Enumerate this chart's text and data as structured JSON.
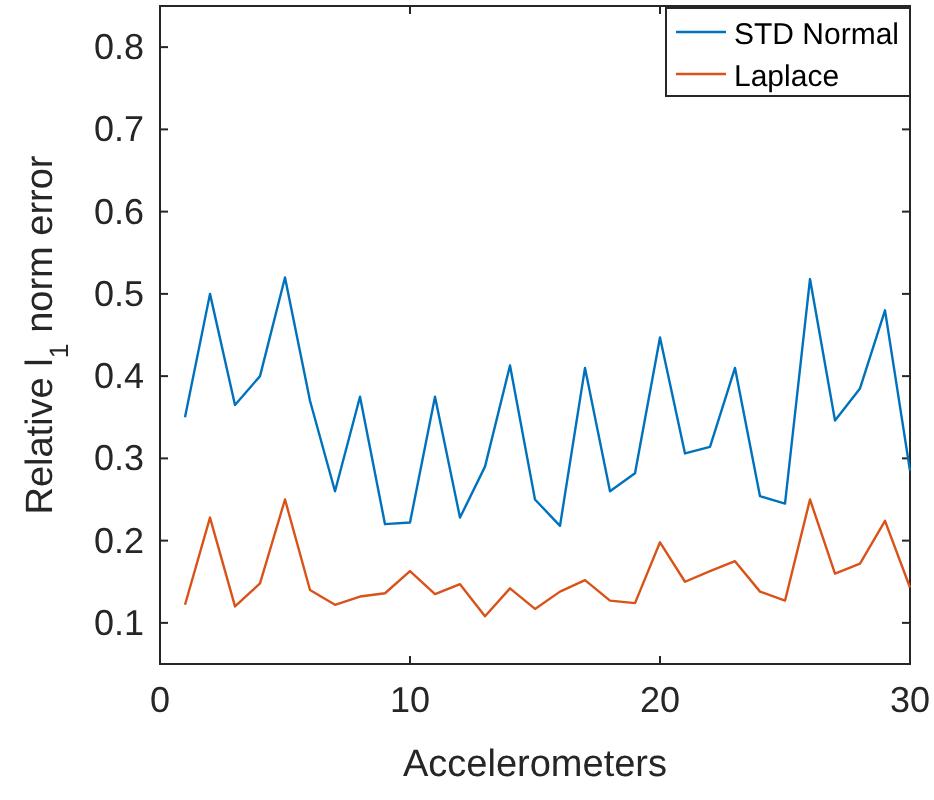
{
  "chart_data": {
    "type": "line",
    "xlabel": "Accelerometers",
    "ylabel": "Relative l$_{1}$ norm error",
    "x": [
      1,
      2,
      3,
      4,
      5,
      6,
      7,
      8,
      9,
      10,
      11,
      12,
      13,
      14,
      15,
      16,
      17,
      18,
      19,
      20,
      21,
      22,
      23,
      24,
      25,
      26,
      27,
      28,
      29,
      30
    ],
    "series": [
      {
        "name": "STD Normal",
        "color": "#0072bd",
        "values": [
          0.35,
          0.5,
          0.365,
          0.4,
          0.52,
          0.37,
          0.26,
          0.375,
          0.22,
          0.222,
          0.375,
          0.228,
          0.29,
          0.413,
          0.25,
          0.218,
          0.41,
          0.26,
          0.282,
          0.447,
          0.306,
          0.314,
          0.41,
          0.254,
          0.245,
          0.518,
          0.346,
          0.385,
          0.48,
          0.285
        ]
      },
      {
        "name": "Laplace",
        "color": "#d95319",
        "values": [
          0.122,
          0.228,
          0.12,
          0.148,
          0.25,
          0.14,
          0.122,
          0.132,
          0.136,
          0.163,
          0.135,
          0.147,
          0.108,
          0.142,
          0.117,
          0.138,
          0.152,
          0.127,
          0.124,
          0.198,
          0.15,
          0.163,
          0.175,
          0.138,
          0.127,
          0.25,
          0.16,
          0.172,
          0.224,
          0.143
        ]
      }
    ],
    "xlim": [
      0,
      30
    ],
    "xticks": [
      0,
      10,
      20,
      30
    ],
    "ylim": [
      0.05,
      0.85
    ],
    "yticks": [
      0.1,
      0.2,
      0.3,
      0.4,
      0.5,
      0.6,
      0.7,
      0.8
    ],
    "grid": false,
    "legend": "top right",
    "line_style": "solid",
    "marker": "none"
  }
}
